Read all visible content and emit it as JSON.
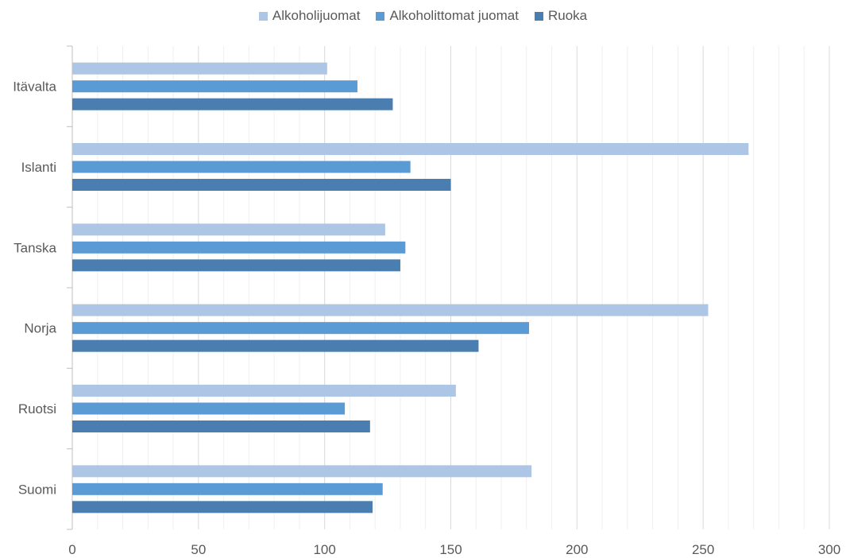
{
  "chart_data": {
    "type": "bar",
    "orientation": "horizontal",
    "categories": [
      "Suomi",
      "Ruotsi",
      "Norja",
      "Tanska",
      "Islanti",
      "Itävalta"
    ],
    "series": [
      {
        "name": "Alkoholijuomat",
        "color": "#adc6e5",
        "values": [
          182,
          152,
          252,
          124,
          268,
          101
        ]
      },
      {
        "name": "Alkoholittomat juomat",
        "color": "#5b9bd5",
        "values": [
          123,
          108,
          181,
          132,
          134,
          113
        ]
      },
      {
        "name": "Ruoka",
        "color": "#4a7eb0",
        "values": [
          119,
          118,
          161,
          130,
          150,
          127
        ]
      }
    ],
    "xlim": [
      0,
      300
    ],
    "xticks": [
      0,
      50,
      100,
      150,
      200,
      250,
      300
    ],
    "minor_grid_step": 10,
    "grid": true,
    "legend_position": "top"
  }
}
